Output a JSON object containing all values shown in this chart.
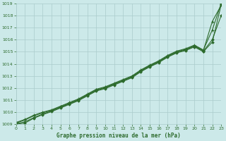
{
  "xlabel": "Graphe pression niveau de la mer (hPa)",
  "xlim": [
    0,
    23
  ],
  "ylim": [
    1009,
    1019
  ],
  "yticks": [
    1009,
    1010,
    1011,
    1012,
    1013,
    1014,
    1015,
    1016,
    1017,
    1018,
    1019
  ],
  "xticks": [
    0,
    1,
    2,
    3,
    4,
    5,
    6,
    7,
    8,
    9,
    10,
    11,
    12,
    13,
    14,
    15,
    16,
    17,
    18,
    19,
    20,
    21,
    22,
    23
  ],
  "background_color": "#cce9e9",
  "grid_color": "#aacccc",
  "line_color": "#2d6b2d",
  "series": [
    [
      1009.1,
      1009.35,
      1009.7,
      1009.95,
      1010.15,
      1010.45,
      1010.75,
      1011.05,
      1011.45,
      1011.85,
      1012.05,
      1012.35,
      1012.65,
      1012.95,
      1013.45,
      1013.85,
      1014.2,
      1014.65,
      1015.0,
      1015.2,
      1015.5,
      1015.1,
      1017.5,
      1018.85
    ],
    [
      1009.05,
      1009.2,
      1009.55,
      1009.85,
      1010.1,
      1010.4,
      1010.7,
      1011.0,
      1011.4,
      1011.8,
      1012.0,
      1012.3,
      1012.6,
      1012.9,
      1013.4,
      1013.8,
      1014.15,
      1014.6,
      1014.95,
      1015.15,
      1015.45,
      1015.05,
      1016.0,
      1018.0
    ],
    [
      1009.15,
      1009.4,
      1009.75,
      1010.0,
      1010.2,
      1010.5,
      1010.8,
      1011.1,
      1011.5,
      1011.9,
      1012.1,
      1012.4,
      1012.7,
      1013.0,
      1013.5,
      1013.9,
      1014.25,
      1014.7,
      1015.05,
      1015.25,
      1015.55,
      1015.15,
      1016.8,
      1019.0
    ],
    [
      1009.0,
      1009.1,
      1009.5,
      1009.8,
      1010.05,
      1010.35,
      1010.65,
      1010.95,
      1011.35,
      1011.75,
      1011.95,
      1012.25,
      1012.55,
      1012.85,
      1013.35,
      1013.75,
      1014.1,
      1014.55,
      1014.9,
      1015.1,
      1015.4,
      1015.0,
      1015.8,
      1018.9
    ]
  ],
  "styles": [
    {
      "color": "#2d6b2d",
      "lw": 0.8,
      "marker": "+",
      "ms": 3.5,
      "mew": 0.8,
      "ls": "-"
    },
    {
      "color": "#2d6b2d",
      "lw": 0.8,
      "marker": "D",
      "ms": 1.8,
      "mew": 0.6,
      "ls": "-"
    },
    {
      "color": "#2d6b2d",
      "lw": 0.8,
      "marker": "+",
      "ms": 3.5,
      "mew": 0.8,
      "ls": "-"
    },
    {
      "color": "#2d6b2d",
      "lw": 0.8,
      "marker": "D",
      "ms": 1.8,
      "mew": 0.6,
      "ls": "-"
    }
  ]
}
